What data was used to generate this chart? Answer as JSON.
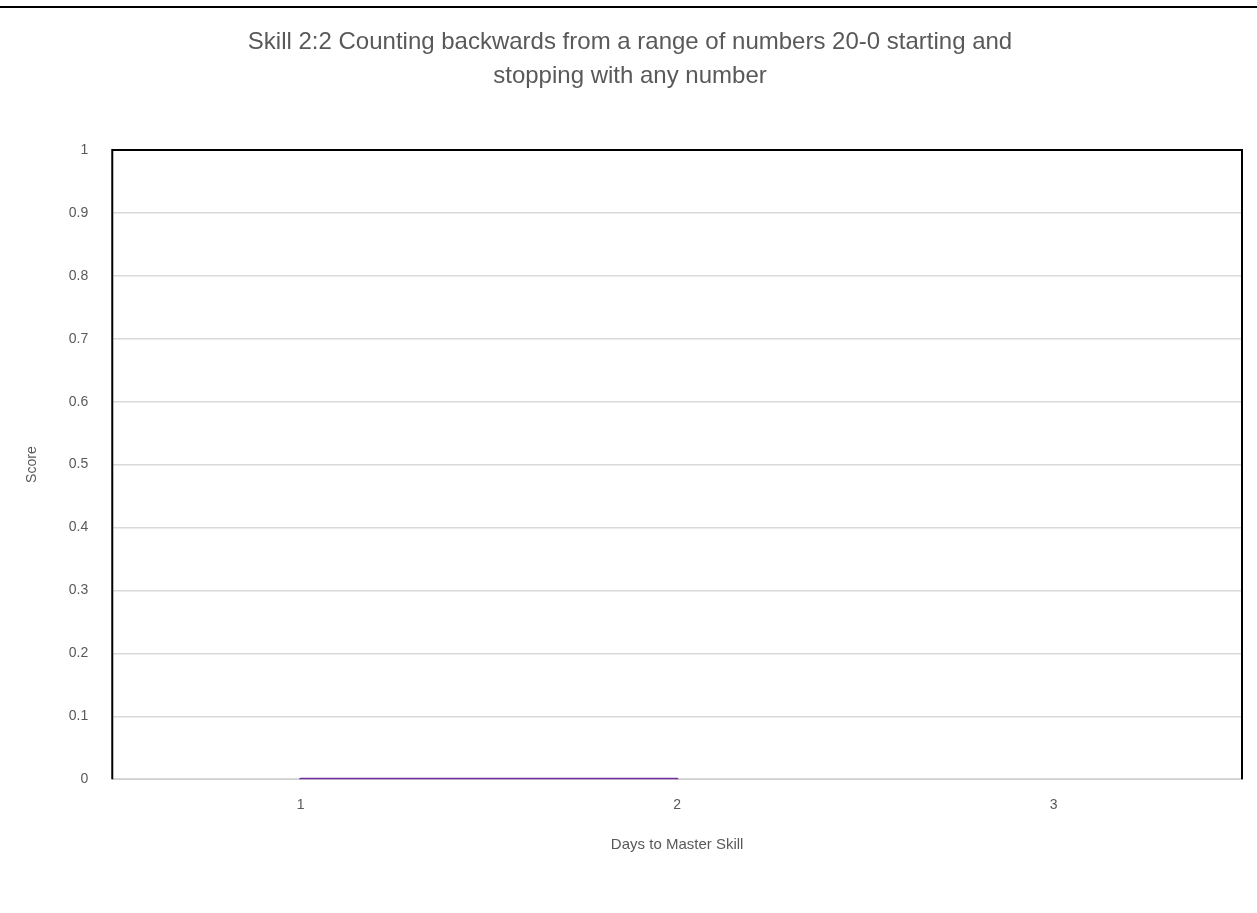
{
  "chart_data": {
    "type": "line",
    "title": "Skill 2:2 Counting backwards from a range of numbers 20-0 starting and stopping with any number",
    "xlabel": "Days to Master Skill",
    "ylabel": "Score",
    "categories": [
      "1",
      "2",
      "3"
    ],
    "series": [
      {
        "color": "#7030a0",
        "values": [
          0,
          0,
          null
        ]
      }
    ],
    "ylim": [
      0,
      1
    ],
    "yticks": [
      0,
      0.1,
      0.2,
      0.3,
      0.4,
      0.5,
      0.6,
      0.7,
      0.8,
      0.9,
      1
    ],
    "grid": "y",
    "marker": "none",
    "line_style": "solid",
    "legend": false
  }
}
